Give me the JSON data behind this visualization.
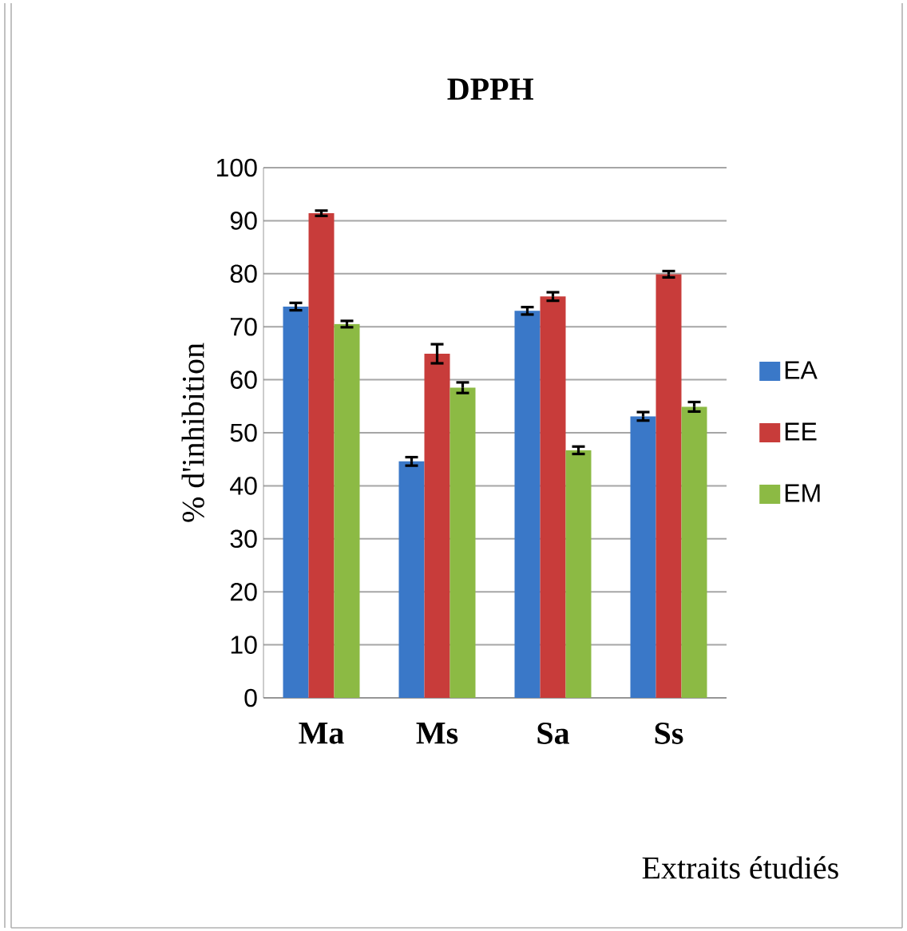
{
  "chart_data": {
    "type": "bar",
    "title": "DPPH",
    "xlabel": "Extraits étudiés",
    "ylabel": "% d'inhibition",
    "categories": [
      "Ma",
      "Ms",
      "Sa",
      "Ss"
    ],
    "series": [
      {
        "name": "EA",
        "color": "#3a78c8",
        "values": [
          73.8,
          44.6,
          73.0,
          53.1
        ],
        "errors": [
          0.7,
          0.8,
          0.7,
          0.8
        ]
      },
      {
        "name": "EE",
        "color": "#c83c3a",
        "values": [
          91.4,
          64.9,
          75.7,
          79.9
        ],
        "errors": [
          0.5,
          1.8,
          0.8,
          0.6
        ]
      },
      {
        "name": "EM",
        "color": "#8cba44",
        "values": [
          70.5,
          58.5,
          46.7,
          54.9
        ],
        "errors": [
          0.6,
          1.0,
          0.7,
          0.9
        ]
      }
    ],
    "ylim": [
      0,
      100
    ],
    "yticks": [
      0,
      10,
      20,
      30,
      40,
      50,
      60,
      70,
      80,
      90,
      100
    ],
    "grid": "y",
    "legend": "right"
  }
}
